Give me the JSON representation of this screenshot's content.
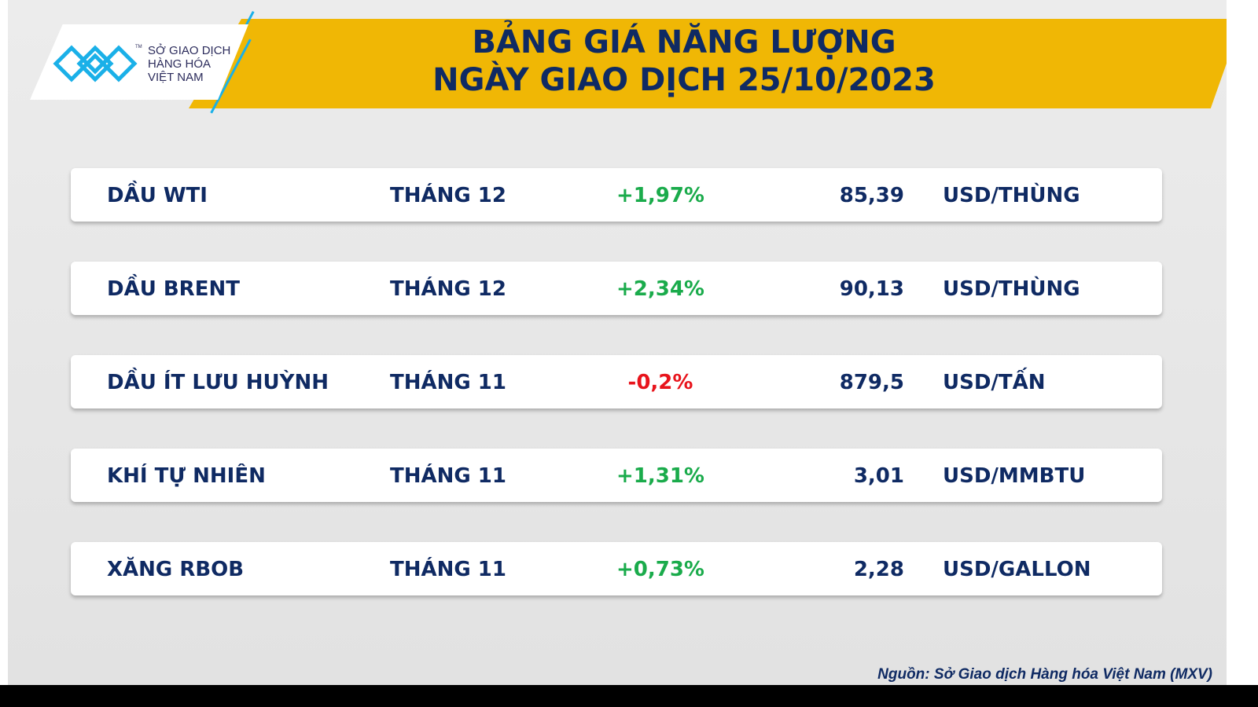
{
  "header": {
    "title_line1": "BẢNG GIÁ NĂNG LƯỢNG",
    "title_line2": "NGÀY GIAO DỊCH 25/10/2023"
  },
  "logo": {
    "line1": "SỞ GIAO DỊCH",
    "line2": "HÀNG HÓA",
    "line3": "VIỆT NAM",
    "tm": "TM"
  },
  "colors": {
    "banner": "#f0b705",
    "navy": "#0f2a63",
    "up": "#1aab4b",
    "down": "#e8141c",
    "logo_blue": "#1ab0e8"
  },
  "rows": [
    {
      "name": "DẦU WTI",
      "month": "THÁNG 12",
      "change": "+1,97%",
      "direction": "up",
      "value": "85,39",
      "unit": "USD/THÙNG"
    },
    {
      "name": "DẦU BRENT",
      "month": "THÁNG 12",
      "change": "+2,34%",
      "direction": "up",
      "value": "90,13",
      "unit": "USD/THÙNG"
    },
    {
      "name": "DẦU ÍT LƯU HUỲNH",
      "month": "THÁNG 11",
      "change": "-0,2%",
      "direction": "down",
      "value": "879,5",
      "unit": "USD/TẤN"
    },
    {
      "name": "KHÍ TỰ NHIÊN",
      "month": "THÁNG 11",
      "change": "+1,31%",
      "direction": "up",
      "value": "3,01",
      "unit": "USD/MMBTU"
    },
    {
      "name": "XĂNG RBOB",
      "month": "THÁNG 11",
      "change": "+0,73%",
      "direction": "up",
      "value": "2,28",
      "unit": "USD/GALLON"
    }
  ],
  "source": "Nguồn: Sở Giao dịch Hàng hóa Việt Nam (MXV)"
}
